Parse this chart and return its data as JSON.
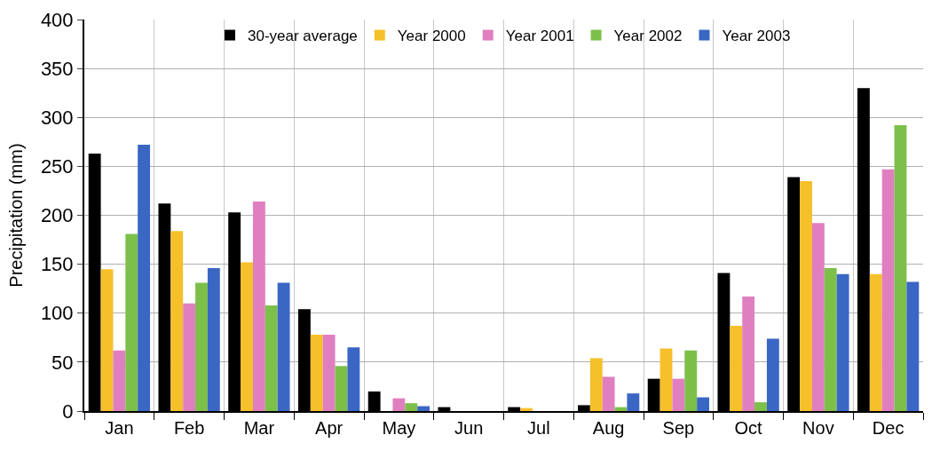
{
  "chart_data": {
    "type": "bar",
    "ylabel": "Precipitation (mm)",
    "categories": [
      "Jan",
      "Feb",
      "Mar",
      "Apr",
      "May",
      "Jun",
      "Jul",
      "Aug",
      "Sep",
      "Oct",
      "Nov",
      "Dec"
    ],
    "series": [
      {
        "name": "30-year average",
        "color": "#000000",
        "values": [
          263,
          212,
          203,
          104,
          20,
          4,
          4,
          6,
          33,
          141,
          239,
          330
        ]
      },
      {
        "name": "Year 2000",
        "color": "#f5c02a",
        "values": [
          145,
          184,
          152,
          78,
          0,
          0,
          3,
          54,
          64,
          87,
          235,
          140
        ]
      },
      {
        "name": "Year 2001",
        "color": "#e07fc0",
        "values": [
          62,
          110,
          214,
          78,
          13,
          0,
          0,
          35,
          33,
          117,
          192,
          247
        ]
      },
      {
        "name": "Year 2002",
        "color": "#7cc04a",
        "values": [
          181,
          131,
          108,
          46,
          8,
          0,
          0,
          4,
          62,
          9,
          146,
          292
        ]
      },
      {
        "name": "Year 2003",
        "color": "#3a66c4",
        "values": [
          272,
          146,
          131,
          65,
          5,
          0,
          0,
          18,
          14,
          74,
          140,
          132
        ]
      }
    ],
    "ylim": [
      0,
      400
    ],
    "yticks": [
      0,
      50,
      100,
      150,
      200,
      250,
      300,
      350,
      400
    ],
    "grid": true,
    "legend": "top"
  }
}
